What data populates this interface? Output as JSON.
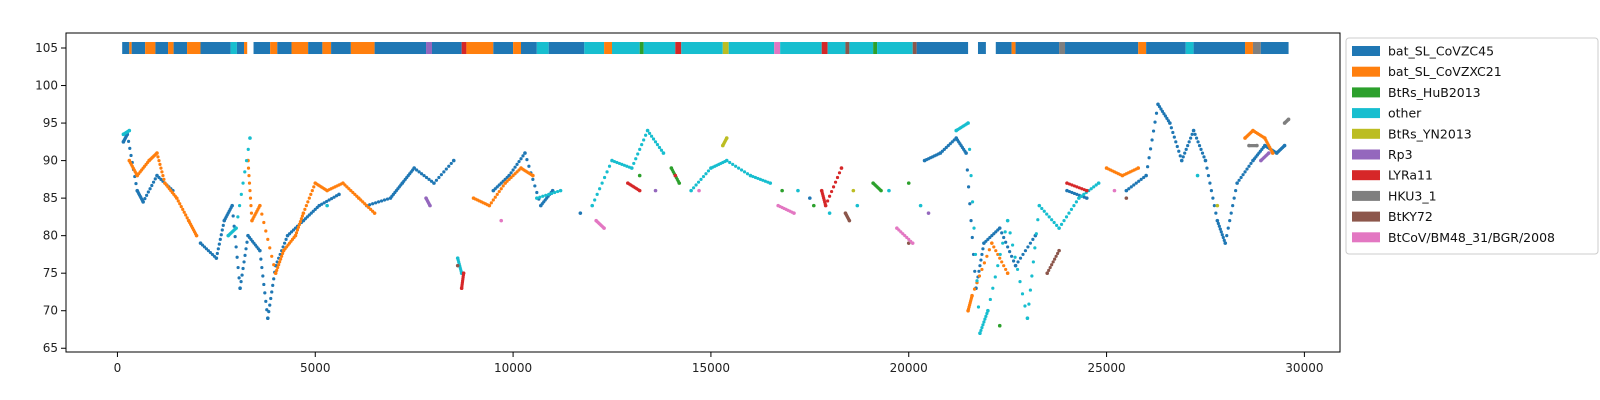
{
  "chart_data": {
    "type": "scatter",
    "title": "",
    "xlabel": "",
    "ylabel": "",
    "xlim": [
      -1300,
      30900
    ],
    "ylim": [
      64.5,
      107
    ],
    "xticks": [
      0,
      5000,
      10000,
      15000,
      20000,
      25000,
      30000
    ],
    "yticks": [
      65,
      70,
      75,
      80,
      85,
      90,
      95,
      100,
      105
    ],
    "grid": false,
    "legend_position": "outside-right-top",
    "colors": {
      "bat_SL_CoVZC45": "#1f77b4",
      "bat_SL_CoVZXC21": "#ff7f0e",
      "BtRs_HuB2013": "#2ca02c",
      "other": "#17becf",
      "BtRs_YN2013": "#bcbd22",
      "Rp3": "#9467bd",
      "LYRa11": "#d62728",
      "HKU3_1": "#7f7f7f",
      "BtKY72": "#8c564b",
      "BtCoV/BM48_31/BGR/2008": "#e377c2"
    },
    "legend": [
      "bat_SL_CoVZC45",
      "bat_SL_CoVZXC21",
      "BtRs_HuB2013",
      "other",
      "BtRs_YN2013",
      "Rp3",
      "LYRa11",
      "HKU3_1",
      "BtKY72",
      "BtCoV/BM48_31/BGR/2008"
    ],
    "top_strip_y": 105,
    "top_strip": [
      {
        "x0": 120,
        "x1": 300,
        "s": "bat_SL_CoVZC45"
      },
      {
        "x0": 300,
        "x1": 360,
        "s": "bat_SL_CoVZXC21"
      },
      {
        "x0": 360,
        "x1": 700,
        "s": "bat_SL_CoVZC45"
      },
      {
        "x0": 700,
        "x1": 960,
        "s": "bat_SL_CoVZXC21"
      },
      {
        "x0": 960,
        "x1": 1280,
        "s": "bat_SL_CoVZC45"
      },
      {
        "x0": 1280,
        "x1": 1420,
        "s": "bat_SL_CoVZXC21"
      },
      {
        "x0": 1420,
        "x1": 1760,
        "s": "bat_SL_CoVZC45"
      },
      {
        "x0": 1760,
        "x1": 2100,
        "s": "bat_SL_CoVZXC21"
      },
      {
        "x0": 2100,
        "x1": 2860,
        "s": "bat_SL_CoVZC45"
      },
      {
        "x0": 2860,
        "x1": 3020,
        "s": "other"
      },
      {
        "x0": 3020,
        "x1": 3200,
        "s": "bat_SL_CoVZC45"
      },
      {
        "x0": 3200,
        "x1": 3280,
        "s": "bat_SL_CoVZXC21"
      },
      {
        "x0": 3440,
        "x1": 3860,
        "s": "bat_SL_CoVZC45"
      },
      {
        "x0": 3860,
        "x1": 4040,
        "s": "bat_SL_CoVZXC21"
      },
      {
        "x0": 4040,
        "x1": 4400,
        "s": "bat_SL_CoVZC45"
      },
      {
        "x0": 4400,
        "x1": 4820,
        "s": "bat_SL_CoVZXC21"
      },
      {
        "x0": 4820,
        "x1": 5180,
        "s": "bat_SL_CoVZC45"
      },
      {
        "x0": 5180,
        "x1": 5400,
        "s": "bat_SL_CoVZXC21"
      },
      {
        "x0": 5400,
        "x1": 5900,
        "s": "bat_SL_CoVZC45"
      },
      {
        "x0": 5900,
        "x1": 6500,
        "s": "bat_SL_CoVZXC21"
      },
      {
        "x0": 6500,
        "x1": 7800,
        "s": "bat_SL_CoVZC45"
      },
      {
        "x0": 7800,
        "x1": 7950,
        "s": "Rp3"
      },
      {
        "x0": 7950,
        "x1": 8700,
        "s": "bat_SL_CoVZC45"
      },
      {
        "x0": 8700,
        "x1": 8820,
        "s": "LYRa11"
      },
      {
        "x0": 8820,
        "x1": 9500,
        "s": "bat_SL_CoVZXC21"
      },
      {
        "x0": 9500,
        "x1": 10000,
        "s": "bat_SL_CoVZC45"
      },
      {
        "x0": 10000,
        "x1": 10200,
        "s": "bat_SL_CoVZXC21"
      },
      {
        "x0": 10200,
        "x1": 10600,
        "s": "bat_SL_CoVZC45"
      },
      {
        "x0": 10600,
        "x1": 10900,
        "s": "other"
      },
      {
        "x0": 10900,
        "x1": 11800,
        "s": "bat_SL_CoVZC45"
      },
      {
        "x0": 11800,
        "x1": 12300,
        "s": "other"
      },
      {
        "x0": 12300,
        "x1": 12500,
        "s": "bat_SL_CoVZXC21"
      },
      {
        "x0": 12500,
        "x1": 13200,
        "s": "other"
      },
      {
        "x0": 13200,
        "x1": 13300,
        "s": "BtRs_HuB2013"
      },
      {
        "x0": 13300,
        "x1": 14100,
        "s": "other"
      },
      {
        "x0": 14100,
        "x1": 14250,
        "s": "LYRa11"
      },
      {
        "x0": 14250,
        "x1": 15300,
        "s": "other"
      },
      {
        "x0": 15300,
        "x1": 15450,
        "s": "BtRs_YN2013"
      },
      {
        "x0": 15450,
        "x1": 16600,
        "s": "other"
      },
      {
        "x0": 16600,
        "x1": 16750,
        "s": "BtCoV/BM48_31/BGR/2008"
      },
      {
        "x0": 16750,
        "x1": 17800,
        "s": "other"
      },
      {
        "x0": 17800,
        "x1": 17950,
        "s": "LYRa11"
      },
      {
        "x0": 17950,
        "x1": 18400,
        "s": "other"
      },
      {
        "x0": 18400,
        "x1": 18500,
        "s": "BtKY72"
      },
      {
        "x0": 18500,
        "x1": 19100,
        "s": "other"
      },
      {
        "x0": 19100,
        "x1": 19200,
        "s": "BtRs_HuB2013"
      },
      {
        "x0": 19200,
        "x1": 20100,
        "s": "other"
      },
      {
        "x0": 20100,
        "x1": 20200,
        "s": "BtKY72"
      },
      {
        "x0": 20200,
        "x1": 21500,
        "s": "bat_SL_CoVZC45"
      },
      {
        "x0": 21750,
        "x1": 21950,
        "s": "bat_SL_CoVZC45"
      },
      {
        "x0": 22200,
        "x1": 22600,
        "s": "bat_SL_CoVZC45"
      },
      {
        "x0": 22600,
        "x1": 22700,
        "s": "bat_SL_CoVZXC21"
      },
      {
        "x0": 22700,
        "x1": 23800,
        "s": "bat_SL_CoVZC45"
      },
      {
        "x0": 23800,
        "x1": 23950,
        "s": "HKU3_1"
      },
      {
        "x0": 23950,
        "x1": 25800,
        "s": "bat_SL_CoVZC45"
      },
      {
        "x0": 25800,
        "x1": 26000,
        "s": "bat_SL_CoVZXC21"
      },
      {
        "x0": 26000,
        "x1": 27000,
        "s": "bat_SL_CoVZC45"
      },
      {
        "x0": 27000,
        "x1": 27200,
        "s": "other"
      },
      {
        "x0": 27200,
        "x1": 28500,
        "s": "bat_SL_CoVZC45"
      },
      {
        "x0": 28500,
        "x1": 28700,
        "s": "bat_SL_CoVZXC21"
      },
      {
        "x0": 28700,
        "x1": 28900,
        "s": "HKU3_1"
      },
      {
        "x0": 28900,
        "x1": 29600,
        "s": "bat_SL_CoVZC45"
      }
    ],
    "series": [
      {
        "name": "bat_SL_CoVZC45",
        "points": [
          [
            150,
            92.5
          ],
          [
            250,
            93.5
          ],
          [
            500,
            86
          ],
          [
            650,
            84.5
          ],
          [
            1000,
            88
          ],
          [
            1400,
            86
          ],
          [
            2100,
            79
          ],
          [
            2500,
            77
          ],
          [
            2700,
            82
          ],
          [
            2900,
            84
          ],
          [
            3100,
            73
          ],
          [
            3300,
            80
          ],
          [
            3600,
            78
          ],
          [
            3800,
            69
          ],
          [
            4000,
            76
          ],
          [
            4300,
            80
          ],
          [
            4700,
            82
          ],
          [
            5100,
            84
          ],
          [
            5600,
            85.5
          ],
          [
            6300,
            84
          ],
          [
            6900,
            85
          ],
          [
            7200,
            87
          ],
          [
            7500,
            89
          ],
          [
            8000,
            87
          ],
          [
            8500,
            90
          ],
          [
            9500,
            86
          ],
          [
            9900,
            88
          ],
          [
            10300,
            91
          ],
          [
            10700,
            84
          ],
          [
            11000,
            86
          ],
          [
            11700,
            83
          ],
          [
            17500,
            85
          ],
          [
            20400,
            90
          ],
          [
            20800,
            91
          ],
          [
            21200,
            93
          ],
          [
            21450,
            91
          ],
          [
            21700,
            73
          ],
          [
            21900,
            79
          ],
          [
            22300,
            81
          ],
          [
            22700,
            76
          ],
          [
            23200,
            80
          ],
          [
            24000,
            86
          ],
          [
            24500,
            85
          ],
          [
            25500,
            86
          ],
          [
            26000,
            88
          ],
          [
            26300,
            97.5
          ],
          [
            26600,
            95
          ],
          [
            26900,
            90
          ],
          [
            27200,
            94
          ],
          [
            27500,
            90
          ],
          [
            27800,
            82
          ],
          [
            28000,
            79
          ],
          [
            28300,
            87
          ],
          [
            28700,
            90
          ],
          [
            29000,
            92
          ],
          [
            29300,
            91
          ],
          [
            29500,
            92
          ]
        ]
      },
      {
        "name": "bat_SL_CoVZXC21",
        "points": [
          [
            300,
            90
          ],
          [
            500,
            88
          ],
          [
            800,
            90
          ],
          [
            1000,
            91
          ],
          [
            1200,
            87
          ],
          [
            1500,
            85
          ],
          [
            1800,
            82
          ],
          [
            2000,
            80
          ],
          [
            3300,
            90
          ],
          [
            3400,
            82
          ],
          [
            3600,
            84
          ],
          [
            4000,
            75
          ],
          [
            4200,
            78
          ],
          [
            4500,
            80
          ],
          [
            4700,
            83
          ],
          [
            5000,
            87
          ],
          [
            5300,
            86
          ],
          [
            5700,
            87
          ],
          [
            6100,
            85
          ],
          [
            6500,
            83
          ],
          [
            9000,
            85
          ],
          [
            9400,
            84
          ],
          [
            9800,
            87
          ],
          [
            10200,
            89
          ],
          [
            10500,
            88
          ],
          [
            21500,
            70
          ],
          [
            21600,
            72
          ],
          [
            22100,
            79
          ],
          [
            22500,
            75
          ],
          [
            25000,
            89
          ],
          [
            25400,
            88
          ],
          [
            25800,
            89
          ],
          [
            28500,
            93
          ],
          [
            28700,
            94
          ],
          [
            29000,
            93
          ],
          [
            29200,
            91
          ]
        ]
      },
      {
        "name": "BtRs_HuB2013",
        "points": [
          [
            13200,
            88
          ],
          [
            14000,
            89
          ],
          [
            14200,
            87
          ],
          [
            16800,
            86
          ],
          [
            17600,
            84
          ],
          [
            19100,
            87
          ],
          [
            19300,
            86
          ],
          [
            20000,
            87
          ],
          [
            22300,
            68
          ]
        ]
      },
      {
        "name": "other",
        "points": [
          [
            150,
            93.5
          ],
          [
            300,
            94
          ],
          [
            2800,
            80
          ],
          [
            3000,
            81
          ],
          [
            3350,
            93
          ],
          [
            5300,
            84
          ],
          [
            8600,
            77
          ],
          [
            8700,
            75
          ],
          [
            10600,
            85
          ],
          [
            11200,
            86
          ],
          [
            12000,
            84
          ],
          [
            12500,
            90
          ],
          [
            13000,
            89
          ],
          [
            13400,
            94
          ],
          [
            13800,
            91
          ],
          [
            14500,
            86
          ],
          [
            15000,
            89
          ],
          [
            15400,
            90
          ],
          [
            16000,
            88
          ],
          [
            16500,
            87
          ],
          [
            17200,
            86
          ],
          [
            18000,
            83
          ],
          [
            18700,
            84
          ],
          [
            19500,
            86
          ],
          [
            20300,
            84
          ],
          [
            21200,
            94
          ],
          [
            21500,
            95
          ],
          [
            21800,
            67
          ],
          [
            22000,
            70
          ],
          [
            22500,
            82
          ],
          [
            23000,
            69
          ],
          [
            23300,
            84
          ],
          [
            23800,
            81
          ],
          [
            24300,
            85
          ],
          [
            24800,
            87
          ],
          [
            27300,
            88
          ]
        ]
      },
      {
        "name": "BtRs_YN2013",
        "points": [
          [
            15300,
            92
          ],
          [
            15400,
            93
          ],
          [
            18600,
            86
          ],
          [
            27800,
            84
          ]
        ]
      },
      {
        "name": "Rp3",
        "points": [
          [
            7800,
            85
          ],
          [
            7900,
            84
          ],
          [
            13600,
            86
          ],
          [
            20500,
            83
          ],
          [
            28900,
            90
          ],
          [
            29100,
            91
          ]
        ]
      },
      {
        "name": "LYRa11",
        "points": [
          [
            8700,
            73
          ],
          [
            8750,
            75
          ],
          [
            12900,
            87
          ],
          [
            13200,
            86
          ],
          [
            14100,
            88
          ],
          [
            17800,
            86
          ],
          [
            17900,
            84
          ],
          [
            18300,
            89
          ],
          [
            24000,
            87
          ],
          [
            24500,
            86
          ]
        ]
      },
      {
        "name": "HKU3_1",
        "points": [
          [
            28600,
            92
          ],
          [
            28800,
            92
          ],
          [
            29500,
            95
          ],
          [
            29600,
            95.5
          ]
        ]
      },
      {
        "name": "BtKY72",
        "points": [
          [
            8600,
            76
          ],
          [
            18400,
            83
          ],
          [
            18500,
            82
          ],
          [
            20000,
            79
          ],
          [
            23500,
            75
          ],
          [
            23800,
            78
          ],
          [
            25500,
            85
          ]
        ]
      },
      {
        "name": "BtCoV/BM48_31/BGR/2008",
        "points": [
          [
            9700,
            82
          ],
          [
            12100,
            82
          ],
          [
            12300,
            81
          ],
          [
            14700,
            86
          ],
          [
            16700,
            84
          ],
          [
            17100,
            83
          ],
          [
            19700,
            81
          ],
          [
            20100,
            79
          ],
          [
            25200,
            86
          ]
        ]
      }
    ]
  }
}
